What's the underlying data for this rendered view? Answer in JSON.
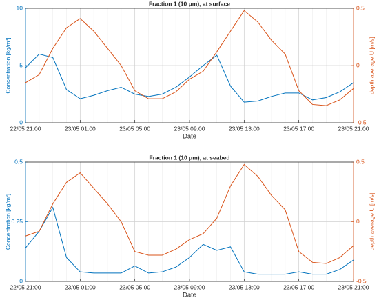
{
  "chart_data": [
    {
      "type": "line",
      "title": "Fraction 1 (10 μm), at surface",
      "x_label": "Date",
      "y_label": "Concentration [kg/m³]",
      "y2_label": "depth average U [m/s]",
      "x": [
        "22/05 21:00",
        "22/05 22:00",
        "22/05 23:00",
        "23/05 00:00",
        "23/05 01:00",
        "23/05 02:00",
        "23/05 03:00",
        "23/05 04:00",
        "23/05 05:00",
        "23/05 06:00",
        "23/05 07:00",
        "23/05 08:00",
        "23/05 09:00",
        "23/05 10:00",
        "23/05 11:00",
        "23/05 12:00",
        "23/05 13:00",
        "23/05 14:00",
        "23/05 15:00",
        "23/05 16:00",
        "23/05 17:00",
        "23/05 18:00",
        "23/05 19:00",
        "23/05 20:00",
        "23/05 21:00"
      ],
      "xticks": [
        "22/05 21:00",
        "23/05 01:00",
        "23/05 05:00",
        "23/05 09:00",
        "23/05 13:00",
        "23/05 17:00",
        "23/05 21:00"
      ],
      "ylim": [
        0,
        10
      ],
      "yticks": [
        0,
        5,
        10
      ],
      "y2lim": [
        -0.5,
        0.5
      ],
      "y2ticks": [
        -0.5,
        0,
        0.5
      ],
      "grid": true,
      "series": [
        {
          "name": "Concentration",
          "color": "#0072bd",
          "values": [
            4.8,
            6.0,
            5.7,
            2.9,
            2.1,
            2.4,
            2.8,
            3.1,
            2.5,
            2.3,
            2.5,
            3.1,
            4.0,
            5.0,
            5.9,
            3.2,
            1.8,
            1.9,
            2.3,
            2.6,
            2.6,
            2.0,
            2.2,
            2.7,
            3.5
          ]
        },
        {
          "name": "depth average U",
          "color": "#d95319",
          "axis": "y2",
          "values": [
            -0.15,
            -0.08,
            0.15,
            0.33,
            0.41,
            0.3,
            0.15,
            0.0,
            -0.22,
            -0.29,
            -0.29,
            -0.23,
            -0.12,
            -0.05,
            0.12,
            0.3,
            0.48,
            0.38,
            0.22,
            0.1,
            -0.22,
            -0.34,
            -0.35,
            -0.3,
            -0.2
          ]
        }
      ]
    },
    {
      "type": "line",
      "title": "Fraction 1 (10 μm), at seabed",
      "x_label": "Date",
      "y_label": "Concentration [kg/m³]",
      "y2_label": "depth average U [m/s]",
      "x": [
        "22/05 21:00",
        "22/05 22:00",
        "22/05 23:00",
        "23/05 00:00",
        "23/05 01:00",
        "23/05 02:00",
        "23/05 03:00",
        "23/05 04:00",
        "23/05 05:00",
        "23/05 06:00",
        "23/05 07:00",
        "23/05 08:00",
        "23/05 09:00",
        "23/05 10:00",
        "23/05 11:00",
        "23/05 12:00",
        "23/05 13:00",
        "23/05 14:00",
        "23/05 15:00",
        "23/05 16:00",
        "23/05 17:00",
        "23/05 18:00",
        "23/05 19:00",
        "23/05 20:00",
        "23/05 21:00"
      ],
      "xticks": [
        "22/05 21:00",
        "23/05 01:00",
        "23/05 05:00",
        "23/05 09:00",
        "23/05 13:00",
        "23/05 17:00",
        "23/05 21:00"
      ],
      "ylim": [
        0,
        0.5
      ],
      "yticks": [
        0,
        0.25,
        0.5
      ],
      "y2lim": [
        -0.5,
        0.5
      ],
      "y2ticks": [
        -0.5,
        0,
        0.5
      ],
      "grid": true,
      "series": [
        {
          "name": "Concentration",
          "color": "#0072bd",
          "values": [
            0.14,
            0.21,
            0.31,
            0.1,
            0.04,
            0.035,
            0.035,
            0.035,
            0.065,
            0.035,
            0.04,
            0.06,
            0.1,
            0.155,
            0.13,
            0.145,
            0.04,
            0.03,
            0.03,
            0.03,
            0.04,
            0.03,
            0.03,
            0.05,
            0.09
          ]
        },
        {
          "name": "depth average U",
          "color": "#d95319",
          "axis": "y2",
          "values": [
            -0.12,
            -0.08,
            0.15,
            0.33,
            0.41,
            0.28,
            0.15,
            0.0,
            -0.25,
            -0.28,
            -0.28,
            -0.23,
            -0.15,
            -0.1,
            0.03,
            0.3,
            0.48,
            0.38,
            0.22,
            0.1,
            -0.25,
            -0.34,
            -0.35,
            -0.3,
            -0.2
          ]
        }
      ]
    }
  ]
}
